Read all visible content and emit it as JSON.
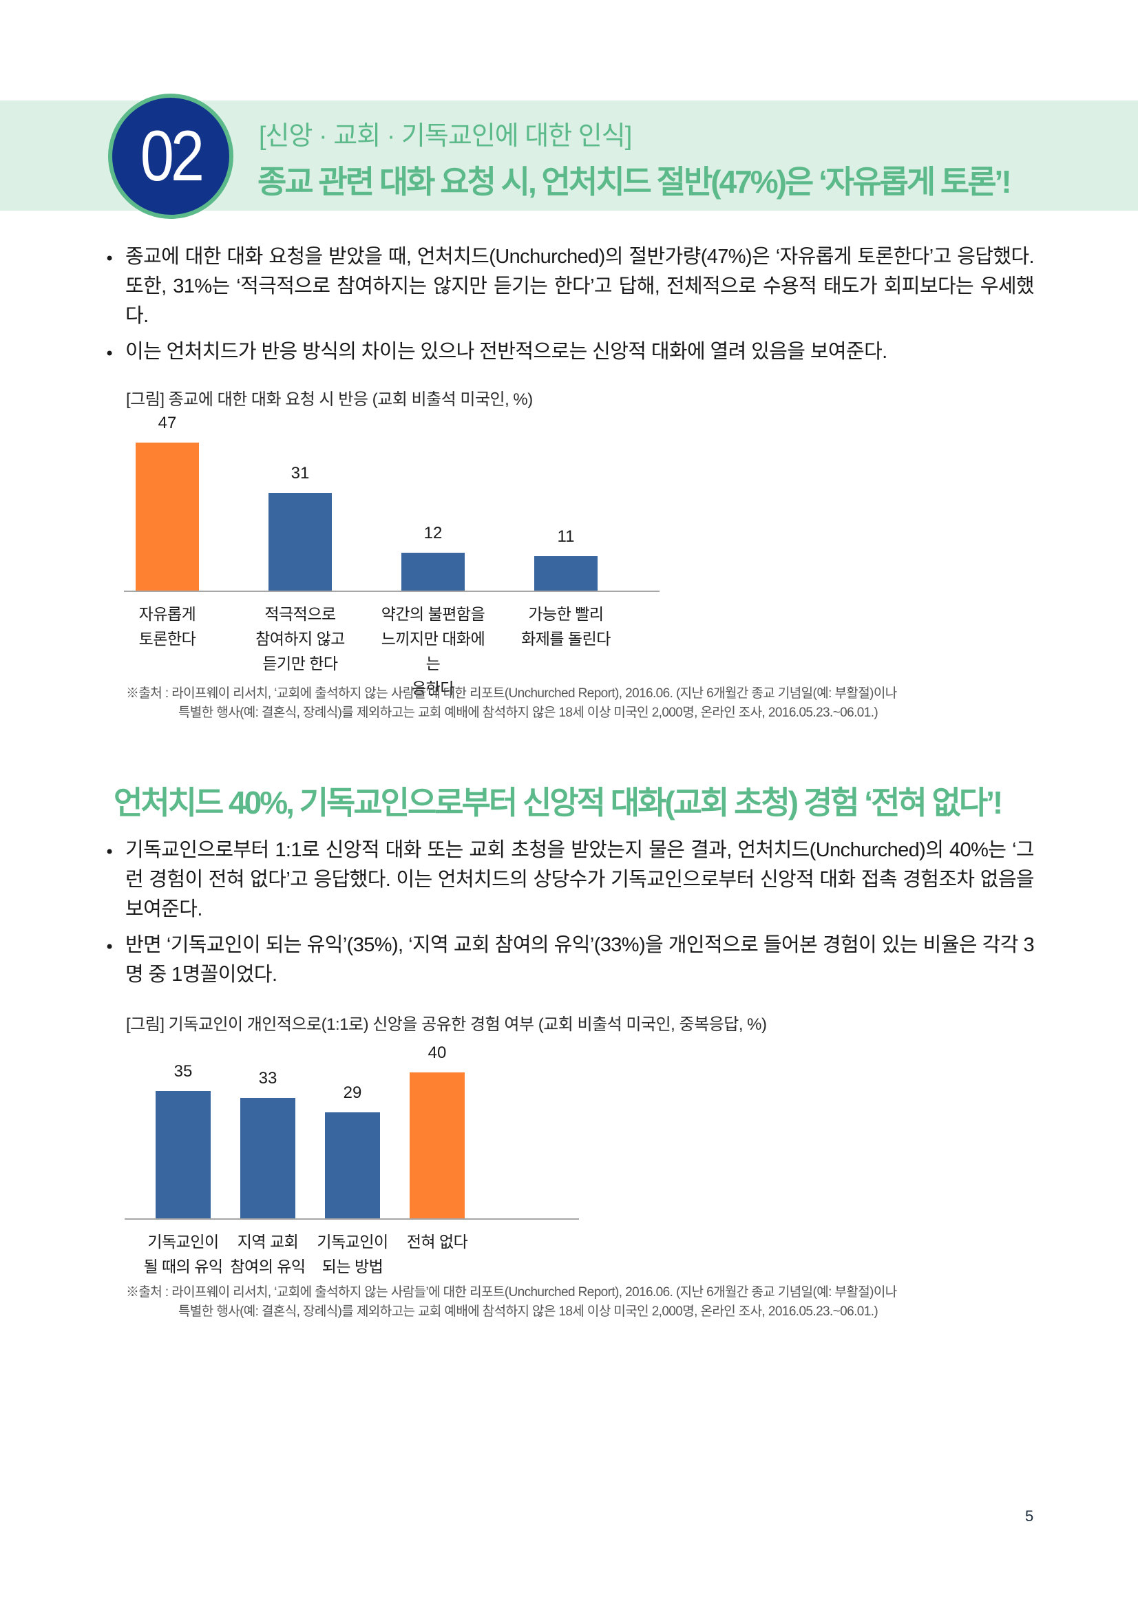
{
  "header": {
    "badge_number": "02",
    "kicker": "[신앙 · 교회 · 기독교인에 대한 인식]",
    "headline": "종교 관련 대화 요청 시, 언처치드 절반(47%)은 ‘자유롭게 토론’!"
  },
  "section1": {
    "bullets": [
      "종교에 대한 대화 요청을 받았을 때, 언처치드(Unchurched)의 절반가량(47%)은 ‘자유롭게 토론한다’고 응답했다. 또한, 31%는 ‘적극적으로 참여하지는 않지만 듣기는 한다’고 답해, 전체적으로 수용적 태도가 회피보다는 우세했다.",
      "이는 언처치드가 반응 방식의 차이는 있으나 전반적으로는 신앙적 대화에 열려 있음을 보여준다."
    ],
    "figure_caption": "[그림] 종교에 대한 대화 요청 시 반응 (교회 비출석 미국인, %)",
    "source_line1": "※출처 : 라이프웨이 리서치, ‘교회에 출석하지 않는 사람들’에 대한 리포트(Unchurched Report), 2016.06. (지난 6개월간 종교 기념일(예: 부활절)이나",
    "source_line2": "특별한 행사(예: 결혼식, 장례식)를 제외하고는 교회 예배에 참석하지 않은 18세 이상 미국인 2,000명, 온라인 조사, 2016.05.23.~06.01.)"
  },
  "section2": {
    "title": "언처치드 40%, 기독교인으로부터 신앙적 대화(교회 초청) 경험 ‘전혀 없다’!",
    "bullets": [
      "기독교인으로부터 1:1로 신앙적 대화 또는 교회 초청을 받았는지 물은 결과, 언처치드(Unchurched)의 40%는 ‘그런 경험이 전혀 없다’고 응답했다. 이는 언처치드의 상당수가 기독교인으로부터 신앙적 대화 접촉 경험조차 없음을 보여준다.",
      "반면 ‘기독교인이 되는 유익’(35%), ‘지역 교회 참여의 유익’(33%)을 개인적으로 들어본 경험이 있는 비율은 각각 3명 중 1명꼴이었다."
    ],
    "figure_caption": "[그림] 기독교인이 개인적으로(1:1로) 신앙을 공유한 경험 여부 (교회 비출석 미국인, 중복응답, %)",
    "source_line1": "※출처 : 라이프웨이 리서치, ‘교회에 출석하지 않는 사람들’에 대한 리포트(Unchurched Report), 2016.06. (지난 6개월간 종교 기념일(예: 부활절)이나",
    "source_line2": "특별한 행사(예: 결혼식, 장례식)를 제외하고는 교회 예배에 참석하지 않은 18세 이상 미국인 2,000명, 온라인 조사, 2016.05.23.~06.01.)"
  },
  "page_number": "5",
  "colors": {
    "brand_green": "#5bb98a",
    "banner_bg": "#dcf0e5",
    "badge_navy": "#12338a",
    "highlight_orange": "#fe8132",
    "bar_blue": "#3a66a0",
    "axis_gray": "#a6a6a6"
  },
  "chart_data": [
    {
      "type": "bar",
      "title": "[그림] 종교에 대한 대화 요청 시 반응 (교회 비출석 미국인, %)",
      "categories": [
        "자유롭게\n토론한다",
        "적극적으로\n참여하지 않고\n듣기만 한다",
        "약간의 불편함을\n느끼지만 대화에는\n응한다",
        "가능한 빨리\n화제를 돌린다"
      ],
      "values": [
        47,
        31,
        12,
        11
      ],
      "bar_colors": [
        "#fe8132",
        "#3a66a0",
        "#3a66a0",
        "#3a66a0"
      ],
      "xlabel": "",
      "ylabel": "%",
      "ylim": [
        0,
        50
      ],
      "grid": false,
      "data_labels": true,
      "legend": "none"
    },
    {
      "type": "bar",
      "title": "[그림] 기독교인이 개인적으로(1:1로) 신앙을 공유한 경험 여부 (교회 비출석 미국인, 중복응답, %)",
      "categories": [
        "기독교인이\n될 때의 유익",
        "지역 교회\n참여의 유익",
        "기독교인이\n되는 방법",
        "전혀 없다"
      ],
      "values": [
        35,
        33,
        29,
        40
      ],
      "bar_colors": [
        "#3a66a0",
        "#3a66a0",
        "#3a66a0",
        "#fe8132"
      ],
      "xlabel": "",
      "ylabel": "%",
      "ylim": [
        0,
        45
      ],
      "grid": false,
      "data_labels": true,
      "legend": "none"
    }
  ]
}
